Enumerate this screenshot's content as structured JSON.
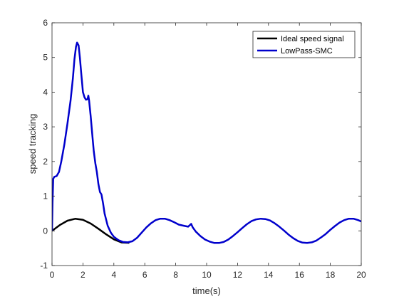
{
  "chart_data": {
    "type": "line",
    "title": "",
    "xlabel": "time(s)",
    "ylabel": "speed tracking",
    "xlim": [
      0,
      20
    ],
    "ylim": [
      -1,
      6
    ],
    "x_ticks": [
      "0",
      "2",
      "4",
      "6",
      "8",
      "10",
      "12",
      "14",
      "16",
      "18",
      "20"
    ],
    "y_ticks": [
      "-1",
      "0",
      "1",
      "2",
      "3",
      "4",
      "5",
      "6"
    ],
    "grid": false,
    "legend_placement": "top-right",
    "series": [
      {
        "name": "Ideal speed signal",
        "color": "#000000",
        "points": [
          [
            0,
            0
          ],
          [
            0.5,
            0.167
          ],
          [
            1.0,
            0.294
          ],
          [
            1.5,
            0.349
          ],
          [
            2.0,
            0.318
          ],
          [
            2.5,
            0.211
          ],
          [
            3.0,
            0.062
          ],
          [
            3.5,
            -0.099
          ],
          [
            4.0,
            -0.245
          ],
          [
            4.5,
            -0.334
          ],
          [
            5.0,
            -0.345
          ]
        ]
      },
      {
        "name": "LowPass-SMC",
        "color": "#0000CC",
        "points": [
          [
            0,
            0
          ],
          [
            0.03,
            0.8
          ],
          [
            0.08,
            1.5
          ],
          [
            0.15,
            1.56
          ],
          [
            0.3,
            1.58
          ],
          [
            0.45,
            1.7
          ],
          [
            0.6,
            2.0
          ],
          [
            0.8,
            2.5
          ],
          [
            1.0,
            3.1
          ],
          [
            1.2,
            3.75
          ],
          [
            1.35,
            4.4
          ],
          [
            1.45,
            4.95
          ],
          [
            1.55,
            5.3
          ],
          [
            1.62,
            5.43
          ],
          [
            1.72,
            5.35
          ],
          [
            1.8,
            5.0
          ],
          [
            1.9,
            4.5
          ],
          [
            2.0,
            4.0
          ],
          [
            2.1,
            3.85
          ],
          [
            2.2,
            3.78
          ],
          [
            2.3,
            3.8
          ],
          [
            2.35,
            3.9
          ],
          [
            2.4,
            3.75
          ],
          [
            2.5,
            3.3
          ],
          [
            2.6,
            2.8
          ],
          [
            2.7,
            2.3
          ],
          [
            2.8,
            1.95
          ],
          [
            2.9,
            1.7
          ],
          [
            3.0,
            1.35
          ],
          [
            3.1,
            1.12
          ],
          [
            3.2,
            1.05
          ],
          [
            3.3,
            0.8
          ],
          [
            3.4,
            0.5
          ],
          [
            3.6,
            0.15
          ],
          [
            3.8,
            -0.05
          ],
          [
            4.0,
            -0.17
          ],
          [
            4.3,
            -0.27
          ],
          [
            4.6,
            -0.32
          ],
          [
            4.9,
            -0.33
          ],
          [
            5.2,
            -0.3
          ],
          [
            5.5,
            -0.2
          ],
          [
            5.8,
            -0.05
          ],
          [
            6.1,
            0.1
          ],
          [
            6.4,
            0.22
          ],
          [
            6.7,
            0.31
          ],
          [
            7.0,
            0.35
          ],
          [
            7.3,
            0.35
          ],
          [
            7.6,
            0.31
          ],
          [
            7.9,
            0.25
          ],
          [
            8.2,
            0.18
          ],
          [
            8.5,
            0.15
          ],
          [
            8.8,
            0.12
          ],
          [
            9.0,
            0.2
          ],
          [
            9.1,
            0.1
          ],
          [
            9.3,
            -0.02
          ],
          [
            9.6,
            -0.15
          ],
          [
            9.9,
            -0.25
          ],
          [
            10.2,
            -0.31
          ],
          [
            10.5,
            -0.35
          ],
          [
            10.8,
            -0.35
          ],
          [
            11.1,
            -0.32
          ],
          [
            11.4,
            -0.25
          ],
          [
            11.7,
            -0.15
          ],
          [
            12.0,
            -0.04
          ],
          [
            12.3,
            0.08
          ],
          [
            12.6,
            0.19
          ],
          [
            12.9,
            0.28
          ],
          [
            13.2,
            0.33
          ],
          [
            13.5,
            0.35
          ],
          [
            13.8,
            0.34
          ],
          [
            14.1,
            0.3
          ],
          [
            14.4,
            0.22
          ],
          [
            14.7,
            0.12
          ],
          [
            15.0,
            0.01
          ],
          [
            15.3,
            -0.11
          ],
          [
            15.6,
            -0.21
          ],
          [
            15.9,
            -0.29
          ],
          [
            16.2,
            -0.34
          ],
          [
            16.5,
            -0.35
          ],
          [
            16.8,
            -0.33
          ],
          [
            17.1,
            -0.28
          ],
          [
            17.4,
            -0.19
          ],
          [
            17.7,
            -0.09
          ],
          [
            18.0,
            0.03
          ],
          [
            18.3,
            0.14
          ],
          [
            18.6,
            0.24
          ],
          [
            18.9,
            0.31
          ],
          [
            19.2,
            0.35
          ],
          [
            19.5,
            0.35
          ],
          [
            19.8,
            0.31
          ],
          [
            20.0,
            0.27
          ]
        ]
      }
    ]
  }
}
